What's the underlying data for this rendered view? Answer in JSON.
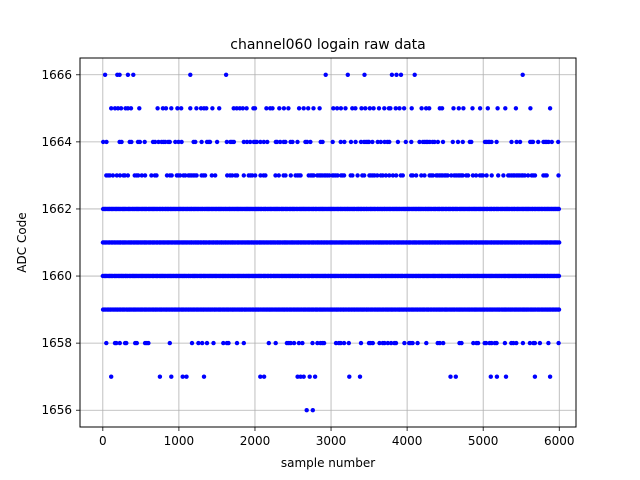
{
  "chart_data": {
    "type": "scatter",
    "title": "channel060 logain raw data",
    "xlabel": "sample number",
    "ylabel": "ADC Code",
    "xlim": [
      -300,
      6220
    ],
    "ylim": [
      1655.5,
      1666.5
    ],
    "xticks": [
      0,
      1000,
      2000,
      3000,
      4000,
      5000,
      6000
    ],
    "yticks": [
      1656,
      1658,
      1660,
      1662,
      1664,
      1666
    ],
    "grid": true,
    "marker_color": "#0000ff",
    "sample_count": 6000,
    "dense_levels": [
      1659,
      1660,
      1661,
      1662
    ],
    "moderate_levels": [
      1658,
      1663,
      1664
    ],
    "sparse_levels": {
      "1665": [
        110,
        160,
        200,
        240,
        300,
        330,
        370,
        480,
        720,
        790,
        830,
        900,
        980,
        1030,
        1150,
        1230,
        1290,
        1330,
        1360,
        1440,
        1530,
        1720,
        1760,
        1800,
        1840,
        1890,
        1980,
        2000,
        2150,
        2200,
        2230,
        2320,
        2380,
        2440,
        2580,
        2640,
        2700,
        2770,
        2850,
        3030,
        3080,
        3130,
        3190,
        3280,
        3320,
        3400,
        3450,
        3510,
        3560,
        3630,
        3700,
        3760,
        3780,
        3850,
        3900,
        3960,
        4060,
        4190,
        4250,
        4290,
        4430,
        4460,
        4610,
        4680,
        4740,
        4860,
        4960,
        5060,
        5190,
        5290,
        5430,
        5620,
        5880
      ],
      "1666": [
        30,
        190,
        220,
        330,
        400,
        1150,
        1620,
        2930,
        3220,
        3440,
        3800,
        3860,
        3920,
        4100,
        5520
      ],
      "1657": [
        110,
        750,
        900,
        1050,
        1100,
        1330,
        2070,
        2120,
        2560,
        2600,
        2640,
        2720,
        2790,
        3240,
        3380,
        4570,
        4640,
        5100,
        5180,
        5300,
        5680,
        5880
      ],
      "1656": [
        2680,
        2760
      ]
    }
  }
}
